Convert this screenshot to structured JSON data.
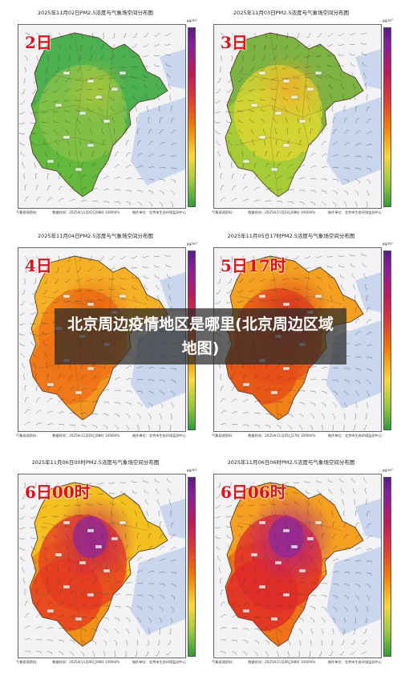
{
  "overlay": {
    "title": "北京周边疫情地区是哪里(北京周边区域地图)"
  },
  "panels": [
    {
      "title": "2025年11月02日PM2.5浓度与气象场空间分布图",
      "day_label": "2日",
      "footer_left": "气象观测资料：",
      "footer_mid": "数据时间：2025年11月02日08时 1000hPa",
      "footer_right": "制作单位：北京市生态环境监测中心",
      "colorbar_unit": "μg/m³",
      "intensity": 1
    },
    {
      "title": "2025年11月03日PM2.5浓度与气象场空间分布图",
      "day_label": "3日",
      "footer_left": "气象观测资料：",
      "footer_mid": "数据时间：2025年11月03日08时 1000hPa",
      "footer_right": "制作单位：北京市生态环境监测中心",
      "colorbar_unit": "μg/m³",
      "intensity": 2
    },
    {
      "title": "2025年11月04日PM2.5浓度与气象场空间分布图",
      "day_label": "4日",
      "footer_left": "气象观测资料：",
      "footer_mid": "数据时间：2025年11月04日08时 1000hPa",
      "footer_right": "制作单位：北京市生态环境监测中心",
      "colorbar_unit": "μg/m³",
      "intensity": 3
    },
    {
      "title": "2025年11月05日17时PM2.5浓度与气象场空间分布图",
      "day_label": "5日17时",
      "footer_left": "气象观测资料：",
      "footer_mid": "数据时间：2025年11月05日17时 1000hPa",
      "footer_right": "制作单位：北京市生态环境监测中心",
      "colorbar_unit": "μg/m³",
      "intensity": 4
    },
    {
      "title": "2025年11月06日00时PM2.5浓度与气象场空间分布图",
      "day_label": "6日00时",
      "footer_left": "气象观测资料：",
      "footer_mid": "数据时间：2025年11月06日00时 1000hPa",
      "footer_right": "制作单位：北京市生态环境监测中心",
      "colorbar_unit": "μg/m³",
      "intensity": 5
    },
    {
      "title": "2025年11月06日06时PM2.5浓度与气象场空间分布图",
      "day_label": "6日06时",
      "footer_left": "气象观测资料：",
      "footer_mid": "数据时间：2025年11月06日06时 1000hPa",
      "footer_right": "制作单位：北京市生态环境监测中心",
      "colorbar_unit": "μg/m³",
      "intensity": 6
    }
  ],
  "colors": {
    "sea": "#c9d6ee",
    "outside": "#f3f3f6",
    "label_red": "#e0101a"
  }
}
